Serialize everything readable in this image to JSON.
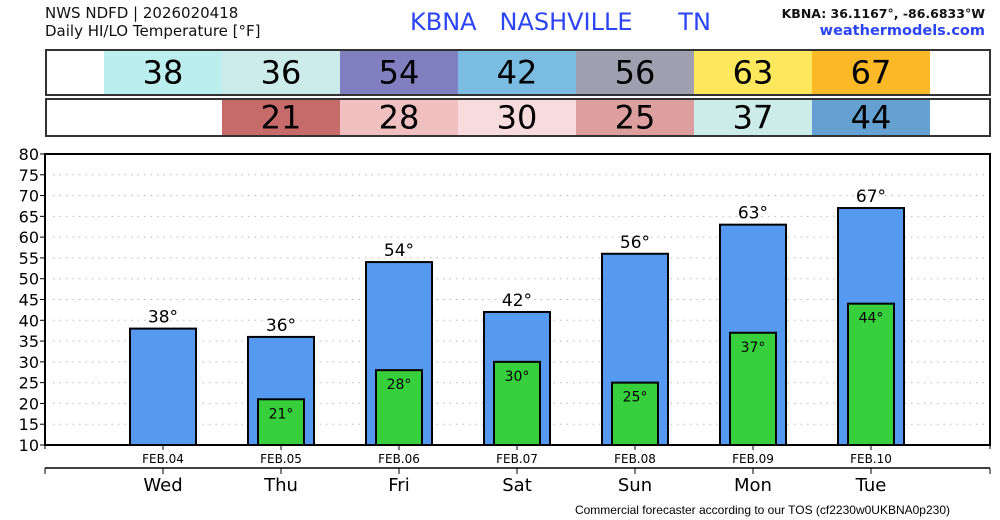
{
  "header": {
    "line1": "NWS NDFD | 2026020418",
    "line2": "Daily HI/LO Temperature [°F]",
    "station": "KBNA   NASHVILLE      TN",
    "coords": "KBNA: 36.1167°, -86.6833°W",
    "site": "weathermodels.com"
  },
  "footer": "Commercial forecaster according to our TOS (cf2230w0UKBNA0p230)",
  "chart_data": {
    "type": "bar",
    "title": "Daily HI/LO Temperature [°F]",
    "ylim": [
      10,
      80
    ],
    "yticks": [
      10,
      15,
      20,
      25,
      30,
      35,
      40,
      45,
      50,
      55,
      60,
      65,
      70,
      75,
      80
    ],
    "grid": true,
    "dates": [
      "FEB.04",
      "FEB.05",
      "FEB.06",
      "FEB.07",
      "FEB.08",
      "FEB.09",
      "FEB.10"
    ],
    "categories": [
      "Wed",
      "Thu",
      "Fri",
      "Sat",
      "Sun",
      "Mon",
      "Tue"
    ],
    "series": [
      {
        "name": "High",
        "color": "#559af0",
        "values": [
          38,
          36,
          54,
          42,
          56,
          63,
          67
        ],
        "labels": [
          "38°",
          "36°",
          "54°",
          "42°",
          "56°",
          "63°",
          "67°"
        ]
      },
      {
        "name": "Low",
        "color": "#37d03c",
        "values": [
          null,
          21,
          28,
          30,
          25,
          37,
          44
        ],
        "labels": [
          null,
          "21°",
          "28°",
          "30°",
          "25°",
          "37°",
          "44°"
        ]
      }
    ],
    "table": {
      "high": {
        "values": [
          "38",
          "36",
          "54",
          "42",
          "56",
          "63",
          "67"
        ],
        "colors": [
          "#bbeeee",
          "#cceceb",
          "#807fbf",
          "#7bbde2",
          "#a09fb0",
          "#fde75c",
          "#fbb928"
        ]
      },
      "low": {
        "values": [
          null,
          "21",
          "28",
          "30",
          "25",
          "37",
          "44"
        ],
        "colors": [
          null,
          "#c76b6a",
          "#efc0bf",
          "#f8dbdc",
          "#dd9e9e",
          "#ccecea",
          "#64a1d2"
        ]
      }
    }
  }
}
